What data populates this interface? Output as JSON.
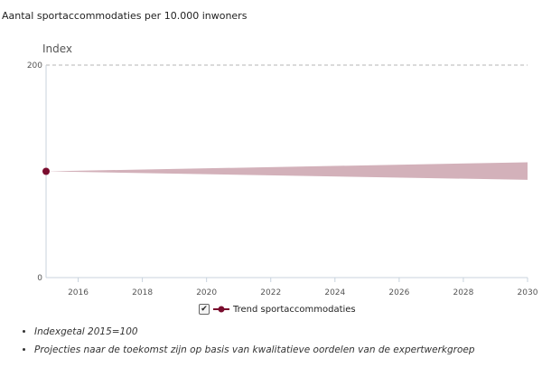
{
  "chart_data": {
    "type": "area",
    "title": "Aantal sportaccommodaties per 10.000 inwoners",
    "ylabel": "Index",
    "xlim": [
      2015,
      2030
    ],
    "ylim": [
      0,
      200
    ],
    "x_ticks": [
      2016,
      2018,
      2020,
      2022,
      2024,
      2026,
      2028,
      2030
    ],
    "y_ticks": [
      0,
      200
    ],
    "grid": "dashed line at top of y axis",
    "colors": {
      "point": "#7a0d2e",
      "band": "#d3b1ba"
    },
    "series": [
      {
        "name": "Trend sportaccommodaties",
        "points": [
          {
            "x": 2015,
            "y": 100
          }
        ],
        "band": {
          "x": [
            2015,
            2030
          ],
          "upper": [
            100,
            108.5
          ],
          "lower": [
            100,
            92
          ]
        }
      }
    ],
    "legend": {
      "position": "bottom-center",
      "checked": true,
      "check_glyph": "✔"
    }
  },
  "notes": [
    "Indexgetal 2015=100",
    "Projecties naar de toekomst zijn op basis van kwalitatieve oordelen van de expertwerkgroep"
  ]
}
